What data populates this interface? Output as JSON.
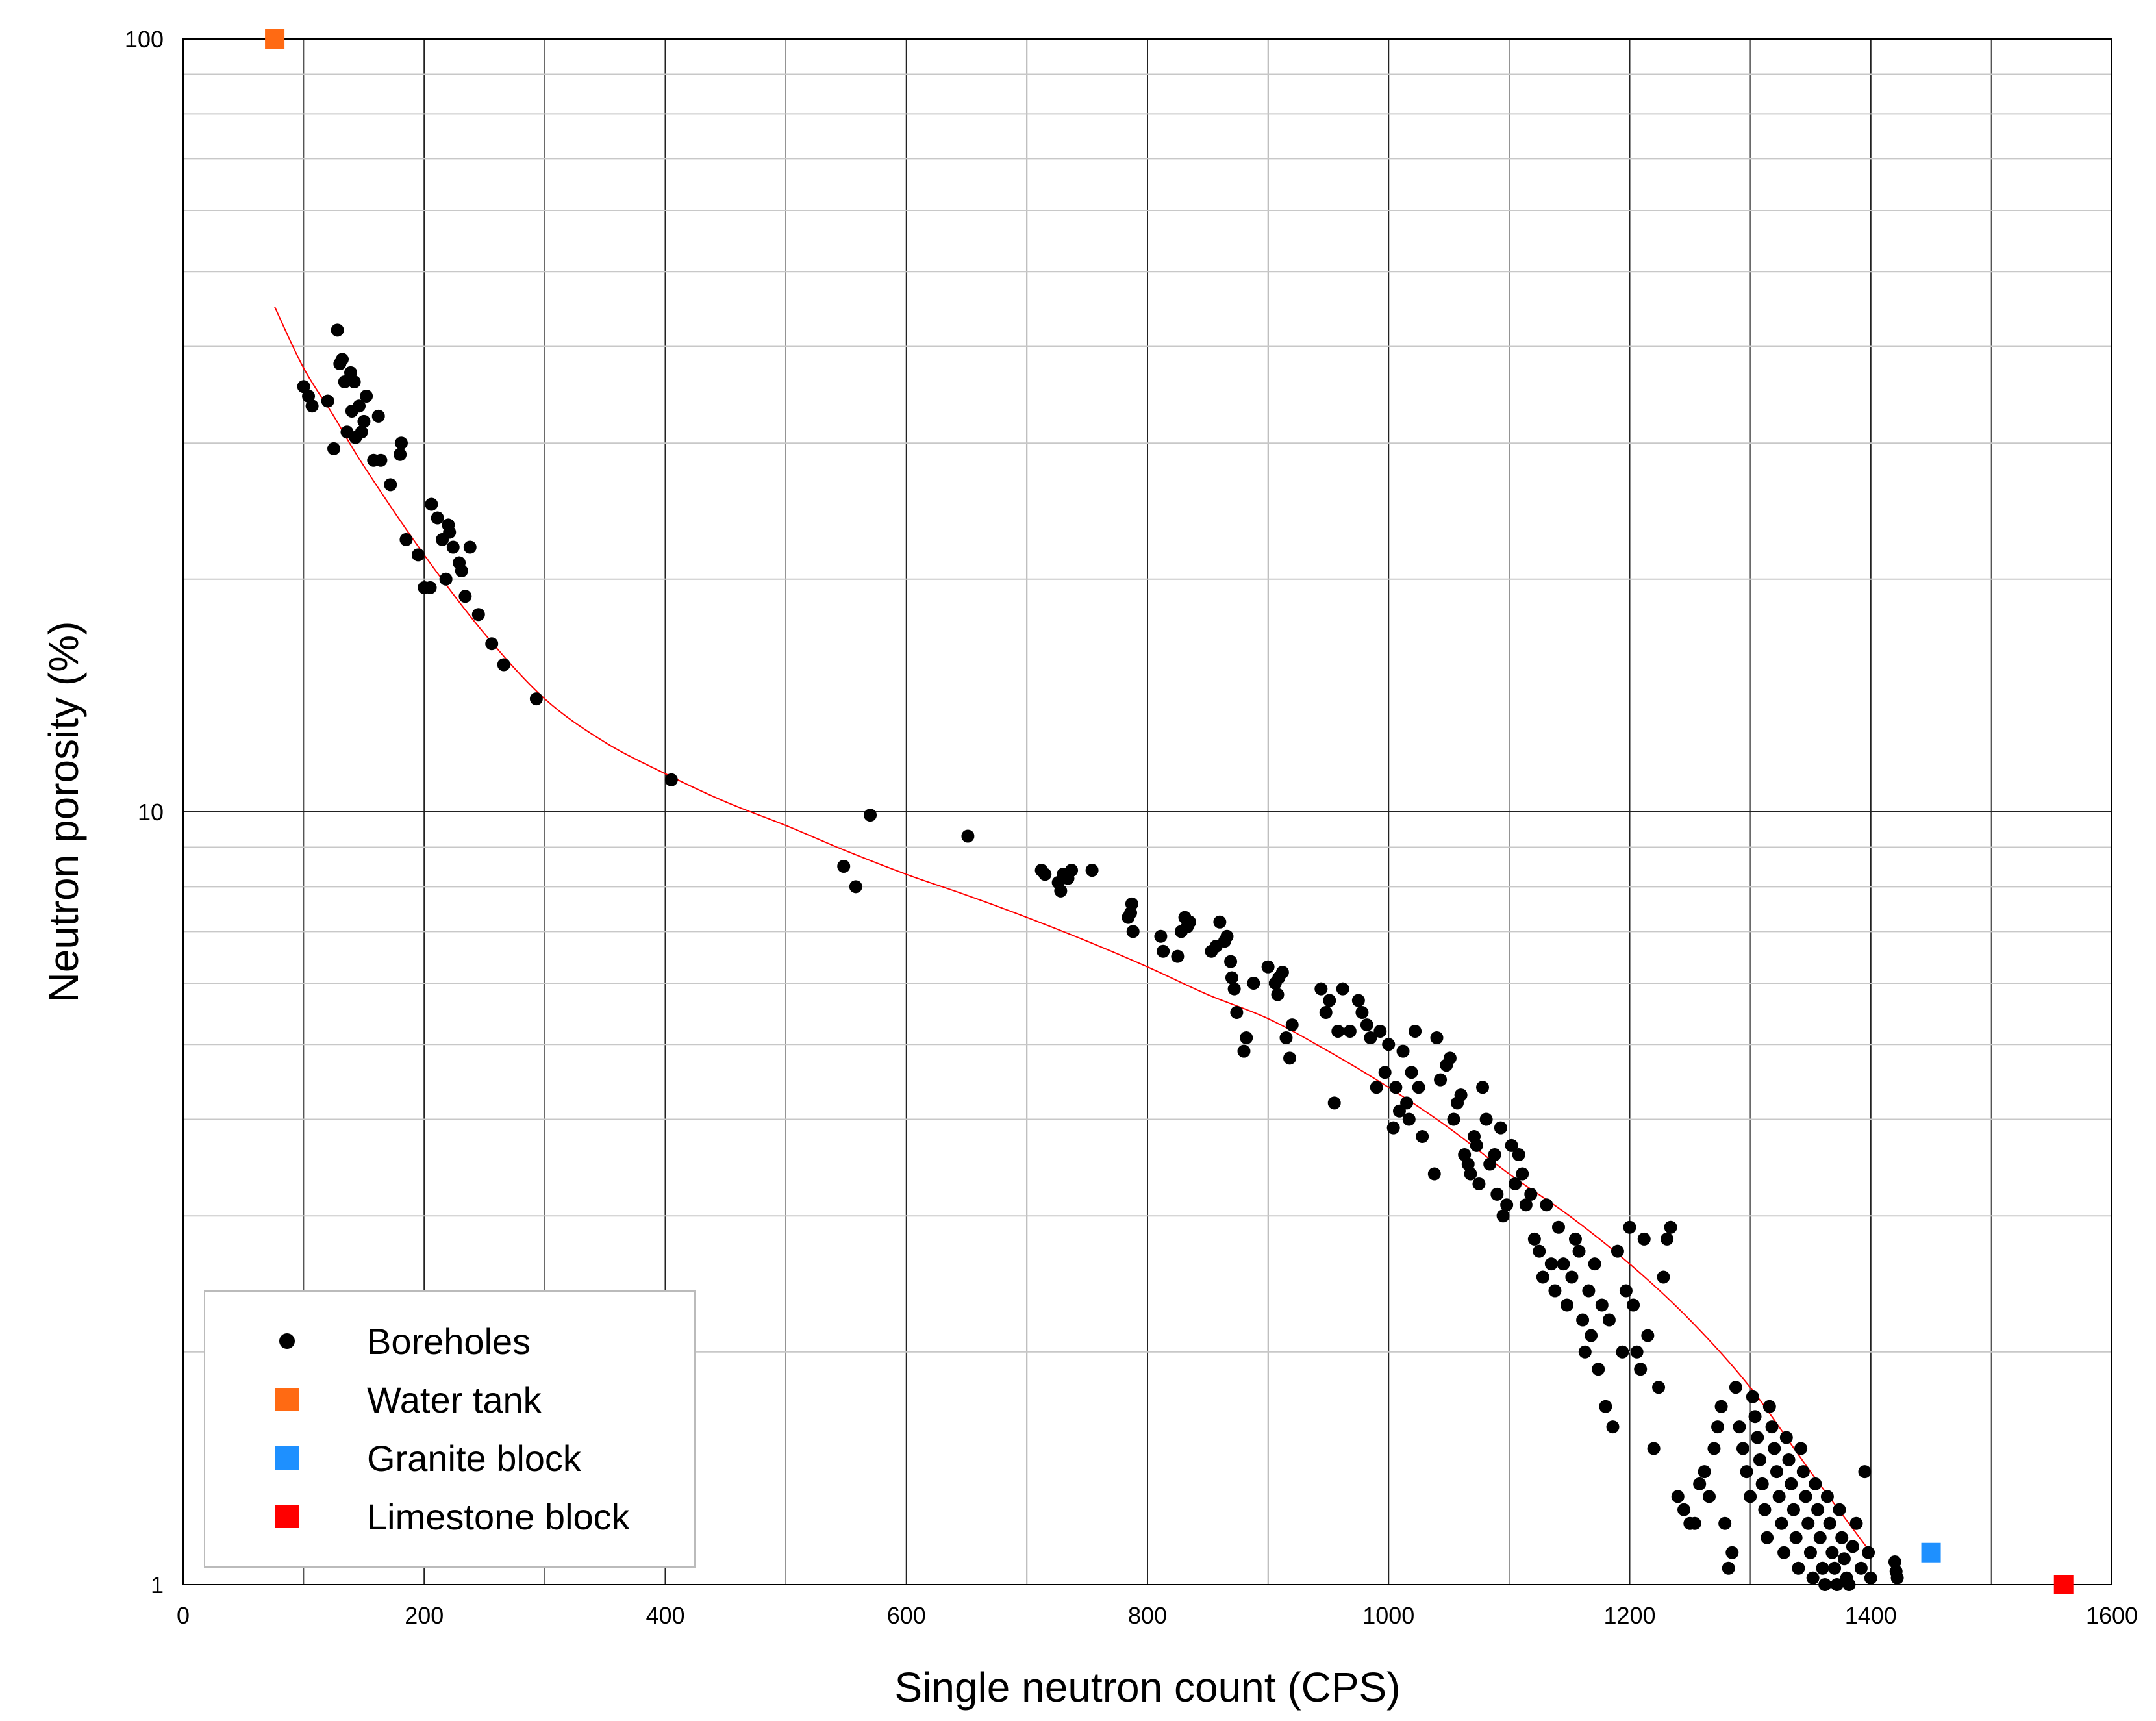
{
  "chart_data": {
    "type": "scatter",
    "xlabel": "Single neutron count (CPS)",
    "ylabel": "Neutron porosity (%)",
    "xlim": [
      0,
      1600
    ],
    "ylim": [
      1,
      100
    ],
    "yscale": "log",
    "x_ticks": [
      0,
      200,
      400,
      600,
      800,
      1000,
      1200,
      1400,
      1600
    ],
    "y_ticks": [
      1,
      10,
      100
    ],
    "x_tick_labels": [
      "0",
      "200",
      "400",
      "600",
      "800",
      "1000",
      "1200",
      "1400",
      "1600"
    ],
    "y_tick_labels": [
      "1",
      "10",
      "100"
    ],
    "grid": true,
    "legend_position": "bottom-left",
    "series": [
      {
        "name": "Boreholes",
        "marker": "circle",
        "color": "#000000",
        "points": [
          [
            100,
            35.5
          ],
          [
            104,
            34.5
          ],
          [
            107,
            33.5
          ],
          [
            120,
            34
          ],
          [
            125,
            29.5
          ],
          [
            128,
            42
          ],
          [
            130,
            38
          ],
          [
            132,
            38.5
          ],
          [
            134,
            36
          ],
          [
            136,
            31
          ],
          [
            139,
            37
          ],
          [
            140,
            33
          ],
          [
            142,
            36
          ],
          [
            143,
            30.5
          ],
          [
            146,
            33.5
          ],
          [
            148,
            31
          ],
          [
            150,
            32
          ],
          [
            152,
            34.5
          ],
          [
            158,
            28.5
          ],
          [
            162,
            32.5
          ],
          [
            164,
            28.5
          ],
          [
            172,
            26.5
          ],
          [
            180,
            29
          ],
          [
            181,
            30
          ],
          [
            185,
            22.5
          ],
          [
            195,
            21.5
          ],
          [
            200,
            19.5
          ],
          [
            205,
            19.5
          ],
          [
            206,
            25
          ],
          [
            211,
            24
          ],
          [
            215,
            22.5
          ],
          [
            218,
            20
          ],
          [
            220,
            23.5
          ],
          [
            221,
            23
          ],
          [
            224,
            22
          ],
          [
            229,
            21
          ],
          [
            231,
            20.5
          ],
          [
            234,
            19
          ],
          [
            238,
            22
          ],
          [
            245,
            18
          ],
          [
            256,
            16.5
          ],
          [
            266,
            15.5
          ],
          [
            293,
            14
          ],
          [
            405,
            11
          ],
          [
            548,
            8.5
          ],
          [
            558,
            8
          ],
          [
            570,
            9.9
          ],
          [
            651,
            9.3
          ],
          [
            712,
            8.4
          ],
          [
            715,
            8.3
          ],
          [
            726,
            8.1
          ],
          [
            728,
            7.9
          ],
          [
            730,
            8.3
          ],
          [
            734,
            8.2
          ],
          [
            737,
            8.4
          ],
          [
            754,
            8.4
          ],
          [
            784,
            7.3
          ],
          [
            786,
            7.4
          ],
          [
            787,
            7.6
          ],
          [
            788,
            7.0
          ],
          [
            811,
            6.9
          ],
          [
            813,
            6.6
          ],
          [
            825,
            6.5
          ],
          [
            828,
            7.0
          ],
          [
            831,
            7.3
          ],
          [
            833,
            7.1
          ],
          [
            835,
            7.2
          ],
          [
            853,
            6.6
          ],
          [
            857,
            6.7
          ],
          [
            860,
            7.2
          ],
          [
            864,
            6.8
          ],
          [
            866,
            6.9
          ],
          [
            869,
            6.4
          ],
          [
            870,
            6.1
          ],
          [
            872,
            5.9
          ],
          [
            874,
            5.5
          ],
          [
            880,
            4.9
          ],
          [
            882,
            5.1
          ],
          [
            888,
            6.0
          ],
          [
            900,
            6.3
          ],
          [
            906,
            6.0
          ],
          [
            908,
            5.8
          ],
          [
            909,
            6.1
          ],
          [
            912,
            6.2
          ],
          [
            915,
            5.1
          ],
          [
            918,
            4.8
          ],
          [
            920,
            5.3
          ],
          [
            944,
            5.9
          ],
          [
            948,
            5.5
          ],
          [
            951,
            5.7
          ],
          [
            955,
            4.2
          ],
          [
            958,
            5.2
          ],
          [
            962,
            5.9
          ],
          [
            968,
            5.2
          ],
          [
            975,
            5.7
          ],
          [
            978,
            5.5
          ],
          [
            982,
            5.3
          ],
          [
            985,
            5.1
          ],
          [
            990,
            4.4
          ],
          [
            993,
            5.2
          ],
          [
            997,
            4.6
          ],
          [
            1000,
            5.0
          ],
          [
            1004,
            3.9
          ],
          [
            1006,
            4.4
          ],
          [
            1009,
            4.1
          ],
          [
            1012,
            4.9
          ],
          [
            1015,
            4.2
          ],
          [
            1017,
            4.0
          ],
          [
            1019,
            4.6
          ],
          [
            1022,
            5.2
          ],
          [
            1025,
            4.4
          ],
          [
            1028,
            3.8
          ],
          [
            1038,
            3.4
          ],
          [
            1040,
            5.1
          ],
          [
            1043,
            4.5
          ],
          [
            1048,
            4.7
          ],
          [
            1051,
            4.8
          ],
          [
            1054,
            4.0
          ],
          [
            1057,
            4.2
          ],
          [
            1060,
            4.3
          ],
          [
            1063,
            3.6
          ],
          [
            1066,
            3.5
          ],
          [
            1068,
            3.4
          ],
          [
            1071,
            3.8
          ],
          [
            1073,
            3.7
          ],
          [
            1075,
            3.3
          ],
          [
            1078,
            4.4
          ],
          [
            1081,
            4.0
          ],
          [
            1084,
            3.5
          ],
          [
            1088,
            3.6
          ],
          [
            1090,
            3.2
          ],
          [
            1093,
            3.9
          ],
          [
            1095,
            3.0
          ],
          [
            1098,
            3.1
          ],
          [
            1102,
            3.7
          ],
          [
            1105,
            3.3
          ],
          [
            1108,
            3.6
          ],
          [
            1111,
            3.4
          ],
          [
            1114,
            3.1
          ],
          [
            1118,
            3.2
          ],
          [
            1121,
            2.8
          ],
          [
            1125,
            2.7
          ],
          [
            1128,
            2.5
          ],
          [
            1131,
            3.1
          ],
          [
            1135,
            2.6
          ],
          [
            1138,
            2.4
          ],
          [
            1141,
            2.9
          ],
          [
            1145,
            2.6
          ],
          [
            1148,
            2.3
          ],
          [
            1152,
            2.5
          ],
          [
            1155,
            2.8
          ],
          [
            1158,
            2.7
          ],
          [
            1161,
            2.2
          ],
          [
            1163,
            2.0
          ],
          [
            1166,
            2.4
          ],
          [
            1168,
            2.1
          ],
          [
            1171,
            2.6
          ],
          [
            1174,
            1.9
          ],
          [
            1177,
            2.3
          ],
          [
            1180,
            1.7
          ],
          [
            1183,
            2.2
          ],
          [
            1186,
            1.6
          ],
          [
            1190,
            2.7
          ],
          [
            1194,
            2.0
          ],
          [
            1197,
            2.4
          ],
          [
            1200,
            2.9
          ],
          [
            1203,
            2.3
          ],
          [
            1206,
            2.0
          ],
          [
            1209,
            1.9
          ],
          [
            1212,
            2.8
          ],
          [
            1215,
            2.1
          ],
          [
            1220,
            1.5
          ],
          [
            1224,
            1.8
          ],
          [
            1228,
            2.5
          ],
          [
            1231,
            2.8
          ],
          [
            1234,
            2.9
          ],
          [
            1240,
            1.3
          ],
          [
            1245,
            1.25
          ],
          [
            1250,
            1.2
          ],
          [
            1254,
            1.2
          ],
          [
            1258,
            1.35
          ],
          [
            1262,
            1.4
          ],
          [
            1266,
            1.3
          ],
          [
            1270,
            1.5
          ],
          [
            1273,
            1.6
          ],
          [
            1276,
            1.7
          ],
          [
            1279,
            1.2
          ],
          [
            1282,
            1.05
          ],
          [
            1285,
            1.1
          ],
          [
            1288,
            1.8
          ],
          [
            1291,
            1.6
          ],
          [
            1294,
            1.5
          ],
          [
            1297,
            1.4
          ],
          [
            1300,
            1.3
          ],
          [
            1302,
            1.75
          ],
          [
            1304,
            1.65
          ],
          [
            1306,
            1.55
          ],
          [
            1308,
            1.45
          ],
          [
            1310,
            1.35
          ],
          [
            1312,
            1.25
          ],
          [
            1314,
            1.15
          ],
          [
            1316,
            1.7
          ],
          [
            1318,
            1.6
          ],
          [
            1320,
            1.5
          ],
          [
            1322,
            1.4
          ],
          [
            1324,
            1.3
          ],
          [
            1326,
            1.2
          ],
          [
            1328,
            1.1
          ],
          [
            1330,
            1.55
          ],
          [
            1332,
            1.45
          ],
          [
            1334,
            1.35
          ],
          [
            1336,
            1.25
          ],
          [
            1338,
            1.15
          ],
          [
            1340,
            1.05
          ],
          [
            1342,
            1.5
          ],
          [
            1344,
            1.4
          ],
          [
            1346,
            1.3
          ],
          [
            1348,
            1.2
          ],
          [
            1350,
            1.1
          ],
          [
            1352,
            1.02
          ],
          [
            1354,
            1.35
          ],
          [
            1356,
            1.25
          ],
          [
            1358,
            1.15
          ],
          [
            1360,
            1.05
          ],
          [
            1362,
            1.0
          ],
          [
            1364,
            1.3
          ],
          [
            1366,
            1.2
          ],
          [
            1368,
            1.1
          ],
          [
            1370,
            1.05
          ],
          [
            1372,
            1.0
          ],
          [
            1374,
            1.25
          ],
          [
            1376,
            1.15
          ],
          [
            1378,
            1.08
          ],
          [
            1380,
            1.02
          ],
          [
            1382,
            1.0
          ],
          [
            1385,
            1.12
          ],
          [
            1388,
            1.2
          ],
          [
            1392,
            1.05
          ],
          [
            1395,
            1.4
          ],
          [
            1398,
            1.1
          ],
          [
            1400,
            1.02
          ],
          [
            1420,
            1.07
          ],
          [
            1421,
            1.04
          ],
          [
            1422,
            1.02
          ]
        ]
      },
      {
        "name": "Water tank",
        "marker": "square",
        "color": "#ff6a13",
        "points": [
          [
            76,
            100
          ]
        ]
      },
      {
        "name": "Granite block",
        "marker": "square",
        "color": "#1e90ff",
        "points": [
          [
            1450,
            1.1
          ]
        ]
      },
      {
        "name": "Limestone block",
        "marker": "square",
        "color": "#ff0000",
        "points": [
          [
            1560,
            1.0
          ]
        ]
      }
    ],
    "fit_curve": {
      "color": "#ff0000",
      "points": [
        [
          76,
          45
        ],
        [
          100,
          37.5
        ],
        [
          125,
          32.5
        ],
        [
          150,
          28
        ],
        [
          200,
          21.5
        ],
        [
          250,
          17
        ],
        [
          300,
          14
        ],
        [
          350,
          12.3
        ],
        [
          400,
          11.2
        ],
        [
          450,
          10.3
        ],
        [
          500,
          9.6
        ],
        [
          550,
          8.9
        ],
        [
          600,
          8.3
        ],
        [
          650,
          7.8
        ],
        [
          700,
          7.3
        ],
        [
          750,
          6.8
        ],
        [
          800,
          6.3
        ],
        [
          850,
          5.8
        ],
        [
          900,
          5.4
        ],
        [
          950,
          4.9
        ],
        [
          1000,
          4.4
        ],
        [
          1050,
          3.9
        ],
        [
          1100,
          3.4
        ],
        [
          1150,
          3.0
        ],
        [
          1200,
          2.6
        ],
        [
          1250,
          2.2
        ],
        [
          1300,
          1.8
        ],
        [
          1350,
          1.4
        ],
        [
          1400,
          1.1
        ]
      ]
    }
  }
}
